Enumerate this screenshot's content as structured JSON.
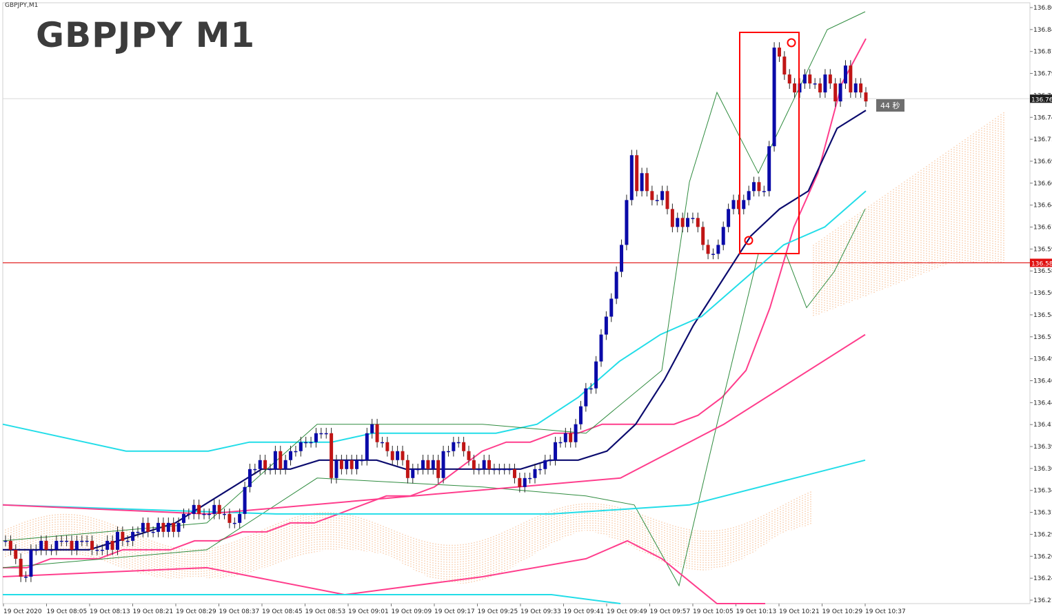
{
  "window": {
    "tab_label": "GBPJPY,M1",
    "title": "GBPJPY M1",
    "timer_text": "44 秒"
  },
  "colors": {
    "bull": "#0a0aa8",
    "bear": "#c01515",
    "ma_fast": "#ff3d8c",
    "ma_mid": "#0b0b6e",
    "ma_slow": "#22dde8",
    "bollinger": "#2e8b3e",
    "ichimoku_cloud": "#f08a3c",
    "hline": "#e01010",
    "highlight_box": "#ff0000"
  },
  "chart_data": {
    "type": "candlestick",
    "symbol": "GBPJPY",
    "timeframe": "M1",
    "ylim": [
      136.2,
      136.87
    ],
    "y_ticks": [
      "136.86",
      "136.84",
      "136.81",
      "136.79",
      "136.76",
      "136.74",
      "136.71",
      "136.69",
      "136.66",
      "136.64",
      "136.61",
      "136.59",
      "136.58",
      "136.56",
      "136.54",
      "136.51",
      "136.49",
      "136.46",
      "136.44",
      "136.41",
      "136.39",
      "136.36",
      "136.34",
      "136.31",
      "136.29",
      "136.26",
      "136.24",
      "136.21"
    ],
    "x_ticks": [
      "19 Oct 2020",
      "19 Oct 08:05",
      "19 Oct 08:13",
      "19 Oct 08:21",
      "19 Oct 08:29",
      "19 Oct 08:37",
      "19 Oct 08:45",
      "19 Oct 08:53",
      "19 Oct 09:01",
      "19 Oct 09:09",
      "19 Oct 09:17",
      "19 Oct 09:25",
      "19 Oct 09:33",
      "19 Oct 09:41",
      "19 Oct 09:49",
      "19 Oct 09:57",
      "19 Oct 10:05",
      "19 Oct 10:13",
      "19 Oct 10:21",
      "19 Oct 10:29",
      "19 Oct 10:37"
    ],
    "current_price_label": "136.76",
    "horizontal_line": {
      "price": 136.58,
      "label": "136.58"
    },
    "candles_close": [
      136.27,
      136.26,
      136.25,
      136.23,
      136.23,
      136.26,
      136.26,
      136.27,
      136.26,
      136.26,
      136.27,
      136.27,
      136.27,
      136.26,
      136.27,
      136.27,
      136.27,
      136.26,
      136.26,
      136.26,
      136.27,
      136.26,
      136.28,
      136.27,
      136.27,
      136.28,
      136.28,
      136.29,
      136.28,
      136.28,
      136.29,
      136.28,
      136.29,
      136.28,
      136.29,
      136.3,
      136.3,
      136.31,
      136.3,
      136.3,
      136.3,
      136.31,
      136.3,
      136.3,
      136.29,
      136.29,
      136.3,
      136.33,
      136.35,
      136.35,
      136.36,
      136.35,
      136.35,
      136.37,
      136.35,
      136.36,
      136.37,
      136.37,
      136.38,
      136.38,
      136.38,
      136.39,
      136.39,
      136.39,
      136.34,
      136.36,
      136.35,
      136.36,
      136.35,
      136.36,
      136.36,
      136.39,
      136.4,
      136.38,
      136.38,
      136.37,
      136.36,
      136.37,
      136.36,
      136.34,
      136.35,
      136.35,
      136.36,
      136.35,
      136.36,
      136.34,
      136.37,
      136.37,
      136.38,
      136.38,
      136.37,
      136.36,
      136.35,
      136.35,
      136.36,
      136.35,
      136.35,
      136.35,
      136.35,
      136.35,
      136.34,
      136.33,
      136.34,
      136.34,
      136.35,
      136.35,
      136.36,
      136.36,
      136.38,
      136.38,
      136.39,
      136.38,
      136.4,
      136.42,
      136.44,
      136.44,
      136.47,
      136.5,
      136.52,
      136.54,
      136.57,
      136.6,
      136.65,
      136.7,
      136.66,
      136.68,
      136.66,
      136.65,
      136.65,
      136.66,
      136.64,
      136.62,
      136.63,
      136.62,
      136.63,
      136.63,
      136.62,
      136.6,
      136.59,
      136.59,
      136.6,
      136.62,
      136.64,
      136.65,
      136.64,
      136.65,
      136.66,
      136.67,
      136.66,
      136.66,
      136.71,
      136.82,
      136.81,
      136.79,
      136.78,
      136.77,
      136.78,
      136.79,
      136.78,
      136.78,
      136.77,
      136.79,
      136.78,
      136.76,
      136.78,
      136.8,
      136.77,
      136.78,
      136.77,
      136.76
    ],
    "series": [
      {
        "name": "MA fast",
        "values": [
          136.24,
          136.24,
          136.25,
          136.25,
          136.25,
          136.26,
          136.26,
          136.26,
          136.27,
          136.27,
          136.28,
          136.28,
          136.29,
          136.29,
          136.3,
          136.31,
          136.32,
          136.32,
          136.33,
          136.35,
          136.37,
          136.38,
          136.38,
          136.39,
          136.39,
          136.4,
          136.4,
          136.4,
          136.4,
          136.41,
          136.43,
          136.46,
          136.53,
          136.62,
          136.68,
          136.78,
          136.83
        ]
      },
      {
        "name": "MA mid",
        "values": [
          136.26,
          136.26,
          136.26,
          136.26,
          136.27,
          136.28,
          136.29,
          136.31,
          136.33,
          136.35,
          136.35,
          136.36,
          136.36,
          136.36,
          136.35,
          136.35,
          136.35,
          136.35,
          136.35,
          136.36,
          136.36,
          136.37,
          136.4,
          136.45,
          136.51,
          136.56,
          136.61,
          136.64,
          136.66,
          136.73,
          136.75
        ]
      },
      {
        "name": "MA slow",
        "values": [
          136.4,
          136.39,
          136.38,
          136.37,
          136.37,
          136.37,
          136.38,
          136.38,
          136.38,
          136.39,
          136.39,
          136.39,
          136.39,
          136.4,
          136.43,
          136.47,
          136.5,
          136.52,
          136.56,
          136.6,
          136.62,
          136.66
        ]
      }
    ]
  }
}
